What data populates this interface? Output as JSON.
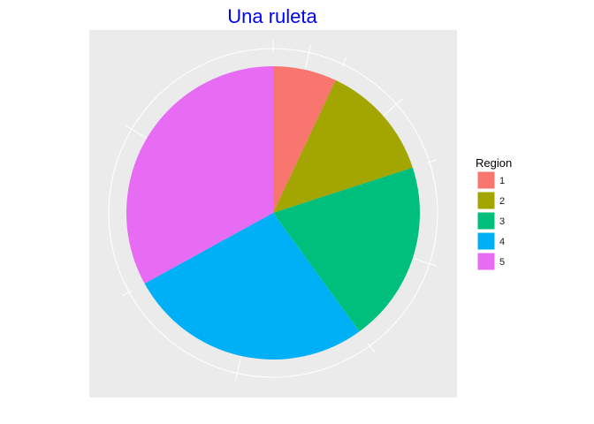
{
  "colors": {
    "title": "#0000FF",
    "panel_background": "#EBEBEB",
    "grid": "#FFFFFF"
  },
  "chart_data": {
    "type": "pie",
    "title": "Una ruleta",
    "start_angle_deg": 0,
    "direction": "clockwise",
    "grid": true,
    "legend": {
      "title": "Region",
      "position": "right"
    },
    "slices": [
      {
        "label": "1",
        "value": 7,
        "color": "#F8766D"
      },
      {
        "label": "2",
        "value": 13,
        "color": "#A3A500"
      },
      {
        "label": "3",
        "value": 20,
        "color": "#00BF7D"
      },
      {
        "label": "4",
        "value": 27,
        "color": "#00B0F6"
      },
      {
        "label": "5",
        "value": 33,
        "color": "#E76BF3"
      }
    ]
  }
}
